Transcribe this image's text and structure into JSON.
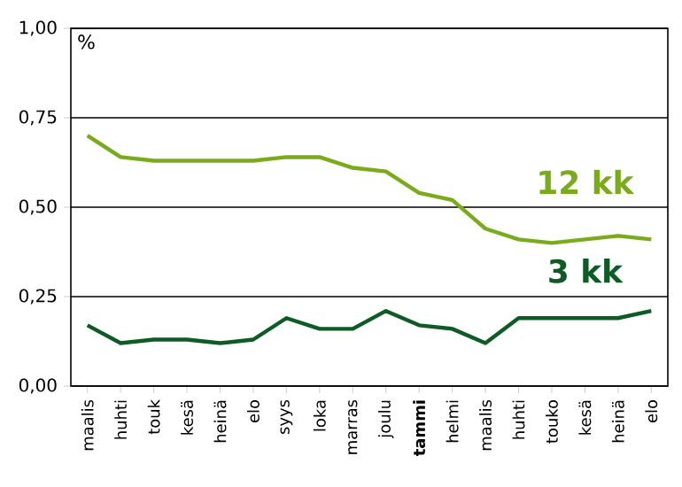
{
  "chart_data": {
    "type": "line",
    "ylabel": "%",
    "categories": [
      "maalis",
      "huhti",
      "touk",
      "kesä",
      "heinä",
      "elo",
      "syys",
      "loka",
      "marras",
      "joulu",
      "**tammi**",
      "helmi",
      "maalis",
      "huhti",
      "touko",
      "kesä",
      "heinä",
      "elo"
    ],
    "series": [
      {
        "name": "12 kk",
        "color": "#7aab1a",
        "values": [
          0.7,
          0.64,
          0.63,
          0.63,
          0.63,
          0.63,
          0.64,
          0.64,
          0.61,
          0.6,
          0.54,
          0.52,
          0.44,
          0.41,
          0.4,
          0.41,
          0.42,
          0.41
        ]
      },
      {
        "name": "3 kk",
        "color": "#0d5c25",
        "values": [
          0.17,
          0.12,
          0.13,
          0.13,
          0.12,
          0.13,
          0.19,
          0.16,
          0.16,
          0.21,
          0.17,
          0.16,
          0.12,
          0.19,
          0.19,
          0.19,
          0.19,
          0.21
        ]
      }
    ],
    "ylim": [
      0,
      1
    ],
    "yticks": [
      {
        "value": 0,
        "label": "0,00"
      },
      {
        "value": 0.25,
        "label": "0,25"
      },
      {
        "value": 0.5,
        "label": "0,50"
      },
      {
        "value": 0.75,
        "label": "0,75"
      },
      {
        "value": 1,
        "label": "1,00"
      }
    ],
    "grid": "y",
    "marker": "none",
    "line_style": "solid"
  }
}
